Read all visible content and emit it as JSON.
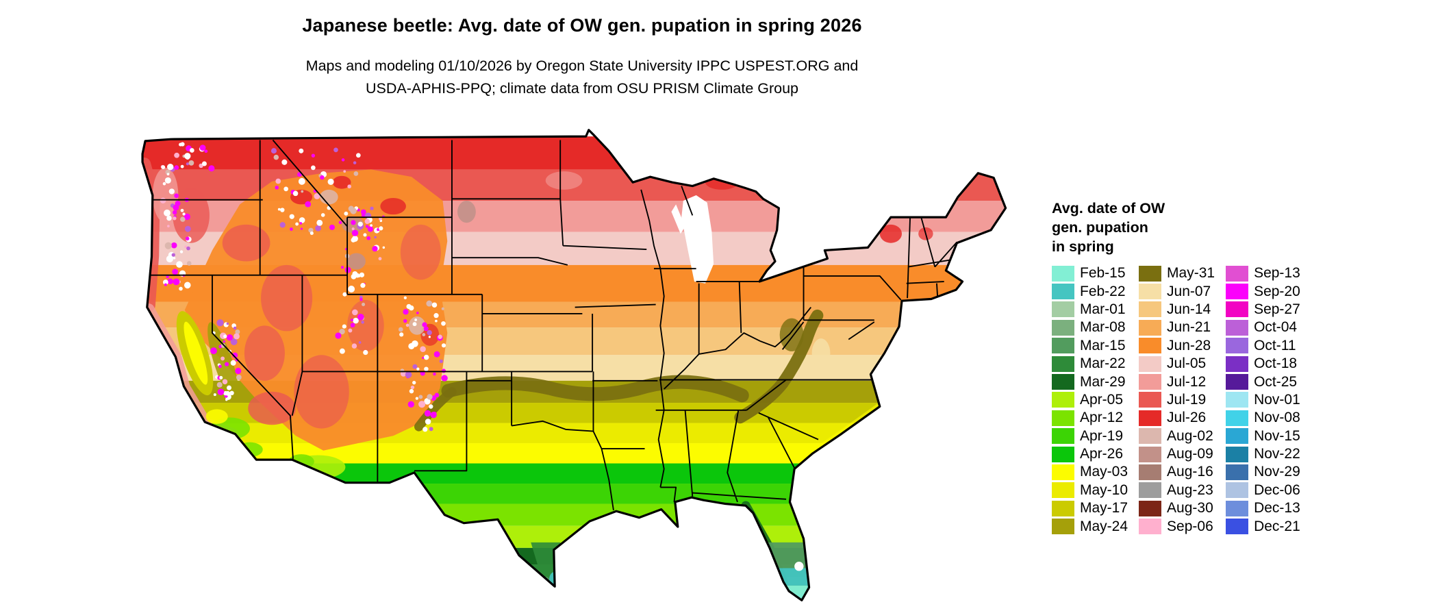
{
  "header": {
    "title": "Japanese beetle: Avg. date of OW gen. pupation in spring 2026",
    "subtitle_line1": "Maps and modeling 01/10/2026 by Oregon State University IPPC USPEST.ORG and",
    "subtitle_line2": "USDA-APHIS-PPQ; climate data from OSU PRISM Climate Group"
  },
  "legend": {
    "title_lines": [
      "Avg. date of OW",
      "gen. pupation",
      "in spring"
    ],
    "columns": [
      {
        "entries": [
          {
            "label": "Feb-15",
            "color": "#82EFD4"
          },
          {
            "label": "Feb-22",
            "color": "#45C5C1"
          },
          {
            "label": "Mar-01",
            "color": "#A3CDA3"
          },
          {
            "label": "Mar-08",
            "color": "#7BB07E"
          },
          {
            "label": "Mar-15",
            "color": "#529C5E"
          },
          {
            "label": "Mar-22",
            "color": "#2E8B39"
          },
          {
            "label": "Mar-29",
            "color": "#14691F"
          },
          {
            "label": "Apr-05",
            "color": "#AEEF0A"
          },
          {
            "label": "Apr-12",
            "color": "#7BE300"
          },
          {
            "label": "Apr-19",
            "color": "#3CD405"
          },
          {
            "label": "Apr-26",
            "color": "#0BC60B"
          },
          {
            "label": "May-03",
            "color": "#FCFC00"
          },
          {
            "label": "May-10",
            "color": "#EBEB00"
          },
          {
            "label": "May-17",
            "color": "#CBCB00"
          },
          {
            "label": "May-24",
            "color": "#A5A00A"
          }
        ]
      },
      {
        "entries": [
          {
            "label": "May-31",
            "color": "#7A6F10"
          },
          {
            "label": "Jun-07",
            "color": "#F6DFA6"
          },
          {
            "label": "Jun-14",
            "color": "#F6C77D"
          },
          {
            "label": "Jun-21",
            "color": "#F7AB56"
          },
          {
            "label": "Jun-28",
            "color": "#F98C2A"
          },
          {
            "label": "Jul-05",
            "color": "#F3CBC6"
          },
          {
            "label": "Jul-12",
            "color": "#F29C99"
          },
          {
            "label": "Jul-19",
            "color": "#EA5852"
          },
          {
            "label": "Jul-26",
            "color": "#E52A28"
          },
          {
            "label": "Aug-02",
            "color": "#DCB7AE"
          },
          {
            "label": "Aug-09",
            "color": "#C29189"
          },
          {
            "label": "Aug-16",
            "color": "#A67D72"
          },
          {
            "label": "Aug-23",
            "color": "#9D9D9D"
          },
          {
            "label": "Aug-30",
            "color": "#7C2617"
          },
          {
            "label": "Sep-06",
            "color": "#FFB0CE"
          }
        ]
      },
      {
        "entries": [
          {
            "label": "Sep-13",
            "color": "#E14FD2"
          },
          {
            "label": "Sep-20",
            "color": "#FB02FB"
          },
          {
            "label": "Sep-27",
            "color": "#F203C3"
          },
          {
            "label": "Oct-04",
            "color": "#BC60D8"
          },
          {
            "label": "Oct-11",
            "color": "#9A67DE"
          },
          {
            "label": "Oct-18",
            "color": "#7B2FC5"
          },
          {
            "label": "Oct-25",
            "color": "#561A9A"
          },
          {
            "label": "Nov-01",
            "color": "#9EE6F2"
          },
          {
            "label": "Nov-08",
            "color": "#41D2E8"
          },
          {
            "label": "Nov-15",
            "color": "#2AA7D4"
          },
          {
            "label": "Nov-22",
            "color": "#1B80A5"
          },
          {
            "label": "Nov-29",
            "color": "#3A70AC"
          },
          {
            "label": "Dec-06",
            "color": "#AEC3E2"
          },
          {
            "label": "Dec-13",
            "color": "#6D8EDC"
          },
          {
            "label": "Dec-21",
            "color": "#3A50E2"
          }
        ]
      }
    ]
  }
}
